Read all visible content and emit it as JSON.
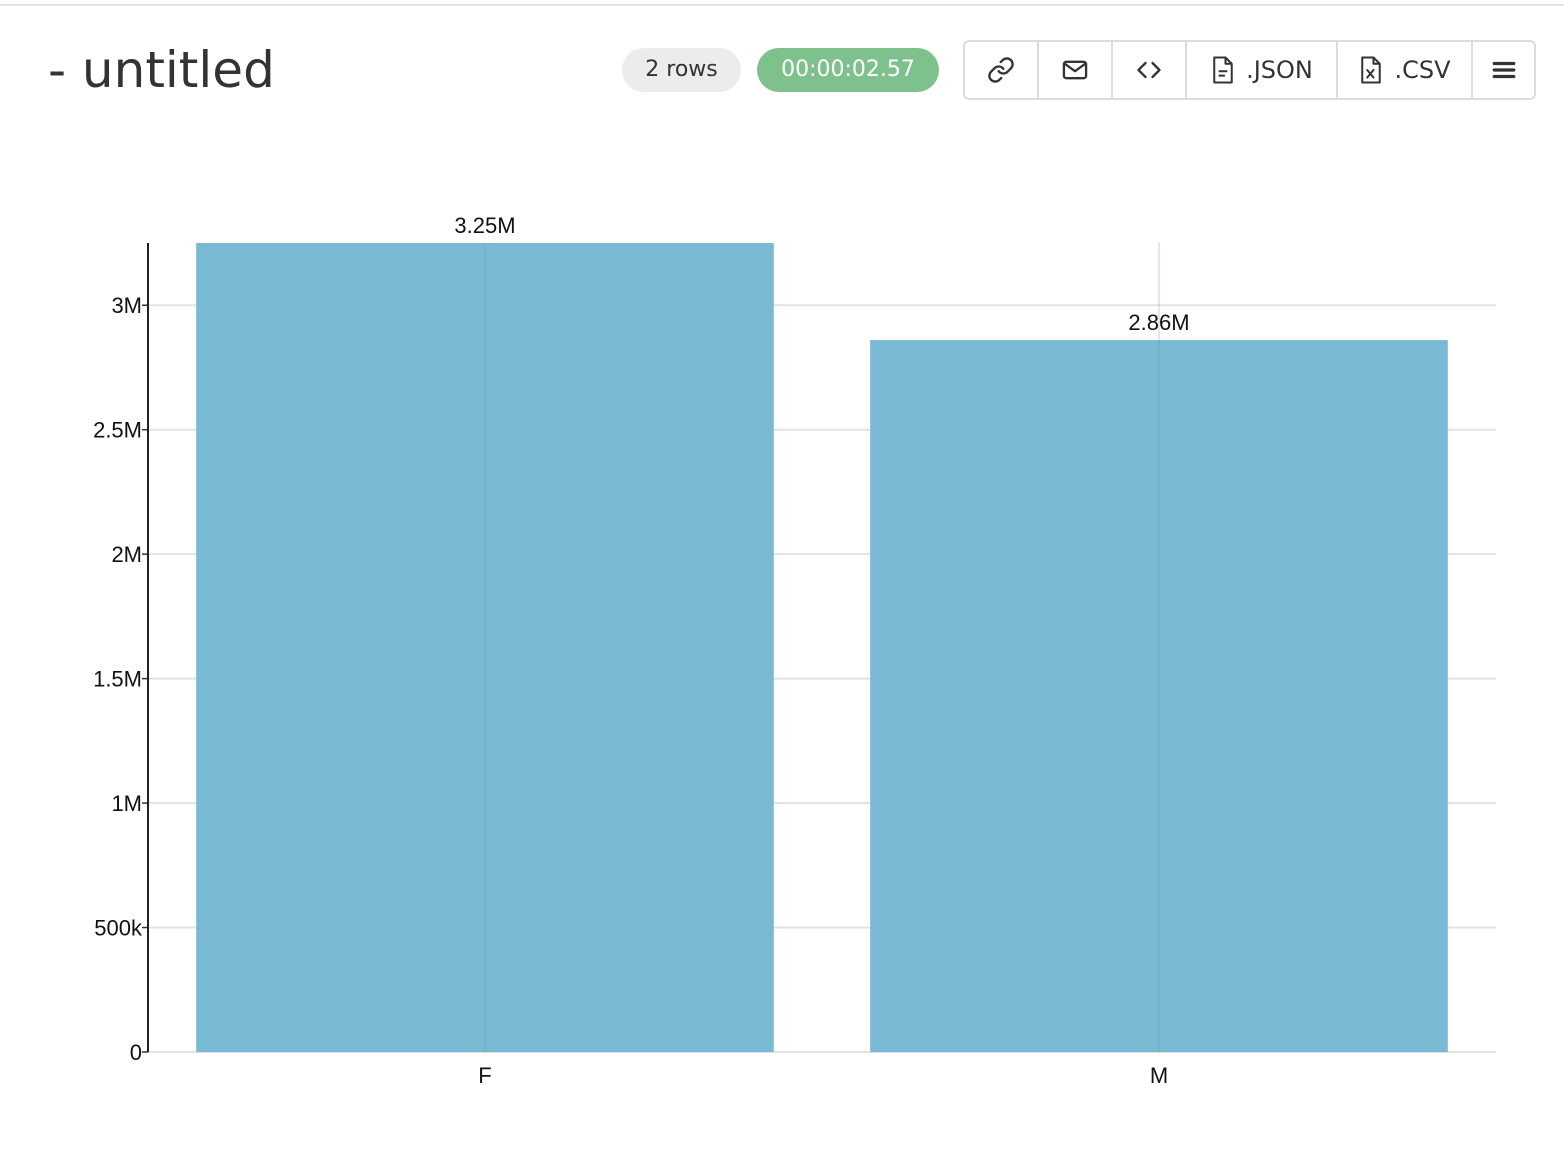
{
  "header": {
    "title": "- untitled",
    "rows_badge": "2 rows",
    "duration_badge": "00:00:02.57"
  },
  "toolbar": {
    "buttons": [
      {
        "icon": "link-icon"
      },
      {
        "icon": "envelope-icon"
      },
      {
        "icon": "code-icon"
      },
      {
        "icon": "json-file-icon",
        "label": ".JSON"
      },
      {
        "icon": "csv-file-icon",
        "label": ".CSV"
      },
      {
        "icon": "hamburger-menu-icon"
      }
    ]
  },
  "colors": {
    "bar": "#7ab9d3",
    "duration_badge": "#7ec18c",
    "rows_badge": "#ececec"
  },
  "chart_data": {
    "type": "bar",
    "categories": [
      "F",
      "M"
    ],
    "values": [
      3250000,
      2860000
    ],
    "data_labels": [
      "3.25M",
      "2.86M"
    ],
    "y_ticks": [
      0,
      500000,
      1000000,
      1500000,
      2000000,
      2500000,
      3000000
    ],
    "y_tick_labels": [
      "0",
      "500k",
      "1M",
      "1.5M",
      "2M",
      "2.5M",
      "3M"
    ],
    "ylim": [
      0,
      3250000
    ],
    "grid": true,
    "title": "",
    "xlabel": "",
    "ylabel": ""
  }
}
